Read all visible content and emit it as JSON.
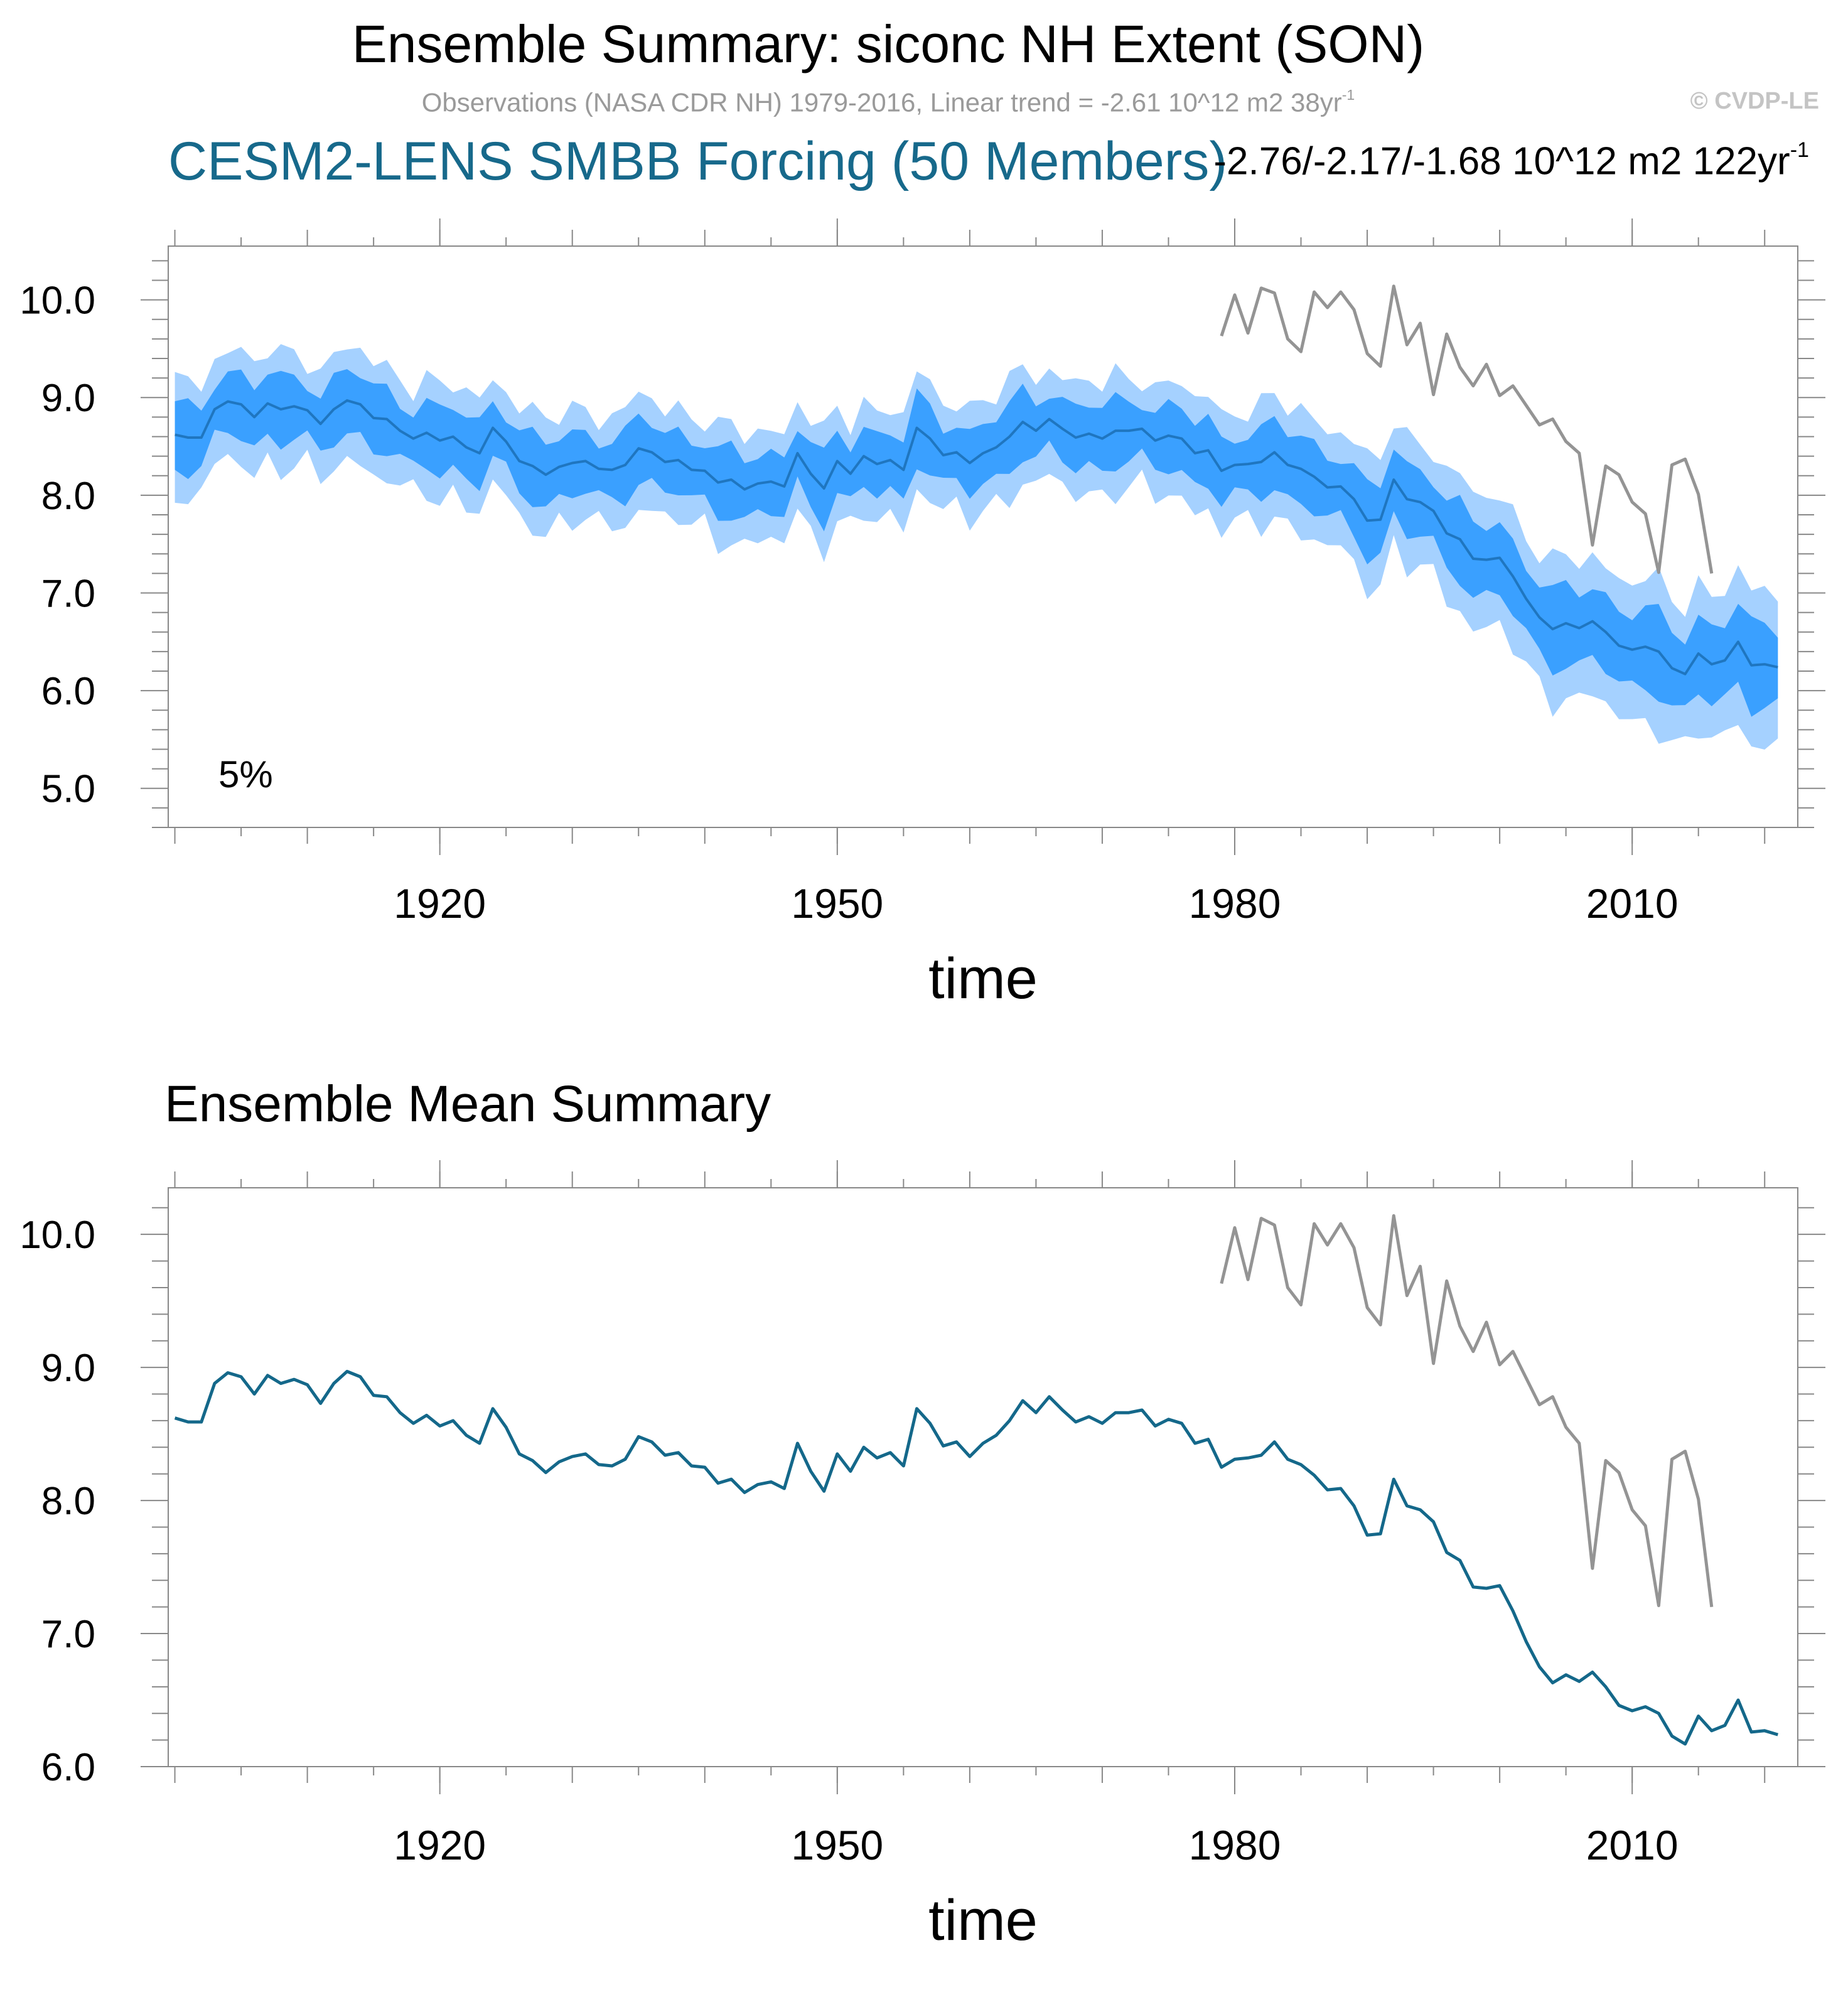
{
  "header": {
    "title": "Ensemble Summary: siconc NH Extent (SON)",
    "obs_subtitle": "Observations (NASA CDR NH) 1979-2016, Linear trend = -2.61 10^12 m2 38yr",
    "obs_subtitle_sup": "-1",
    "copyright": "© CVDP-LE",
    "model_title": "CESM2-LENS SMBB Forcing (50 Members)",
    "trend_range": "-2.76/-2.17/-1.68 10^12 m2 122yr",
    "trend_range_sup": "-1"
  },
  "colors": {
    "outer_band": "#a5d1ff",
    "inner_band": "#3aa0ff",
    "ens_mean_top": "#1f76c0",
    "ens_mean_bottom": "#14688a",
    "observations": "#949494",
    "model_title": "#17698b",
    "axis": "#888888"
  },
  "chart_data": [
    {
      "id": "ensemble_summary",
      "type": "area",
      "title": "CESM2-LENS SMBB Forcing (50 Members)",
      "annotation": "5%",
      "xlabel": "time",
      "ylabel": "",
      "xlim": [
        1899.5,
        2022.5
      ],
      "ylim": [
        4.6,
        10.55
      ],
      "x_ticks": [
        1920,
        1950,
        1980,
        2010
      ],
      "y_ticks": [
        5.0,
        6.0,
        7.0,
        8.0,
        9.0,
        10.0
      ],
      "x_start": 1900,
      "series": [
        {
          "name": "Ensemble mean",
          "role": "mean",
          "values": [
            8.62,
            8.59,
            8.59,
            8.88,
            8.96,
            8.93,
            8.8,
            8.94,
            8.88,
            8.91,
            8.87,
            8.73,
            8.88,
            8.97,
            8.93,
            8.79,
            8.78,
            8.66,
            8.58,
            8.64,
            8.56,
            8.6,
            8.49,
            8.43,
            8.69,
            8.55,
            8.35,
            8.3,
            8.21,
            8.29,
            8.33,
            8.35,
            8.27,
            8.26,
            8.31,
            8.48,
            8.44,
            8.34,
            8.36,
            8.26,
            8.25,
            8.13,
            8.16,
            8.06,
            8.12,
            8.14,
            8.09,
            8.43,
            8.22,
            8.07,
            8.35,
            8.22,
            8.4,
            8.32,
            8.36,
            8.26,
            8.69,
            8.58,
            8.41,
            8.44,
            8.33,
            8.43,
            8.49,
            8.6,
            8.75,
            8.66,
            8.78,
            8.68,
            8.59,
            8.63,
            8.58,
            8.66,
            8.66,
            8.68,
            8.56,
            8.61,
            8.58,
            8.43,
            8.46,
            8.25,
            8.31,
            8.32,
            8.34,
            8.44,
            8.31,
            8.27,
            8.19,
            8.08,
            8.09,
            7.96,
            7.74,
            7.75,
            8.16,
            7.96,
            7.93,
            7.84,
            7.61,
            7.55,
            7.35,
            7.34,
            7.36,
            7.17,
            6.94,
            6.75,
            6.63,
            6.69,
            6.64,
            6.71,
            6.6,
            6.46,
            6.42,
            6.45,
            6.4,
            6.23,
            6.17,
            6.38,
            6.27,
            6.31,
            6.5,
            6.26,
            6.27,
            6.24
          ]
        },
        {
          "name": "Observations (NASA CDR NH)",
          "role": "observations",
          "x_start": 1979,
          "values": [
            9.63,
            10.05,
            9.66,
            10.12,
            10.07,
            9.6,
            9.47,
            10.08,
            9.92,
            10.08,
            9.9,
            9.45,
            9.32,
            10.14,
            9.54,
            9.76,
            9.03,
            9.65,
            9.31,
            9.12,
            9.34,
            9.02,
            9.12,
            8.92,
            8.72,
            8.78,
            8.55,
            8.43,
            7.49,
            8.3,
            8.21,
            7.93,
            7.81,
            7.21,
            8.31,
            8.37,
            8.01,
            7.2
          ]
        }
      ]
    },
    {
      "id": "ensemble_mean_summary",
      "type": "line",
      "title": "Ensemble Mean Summary",
      "xlabel": "time",
      "ylabel": "",
      "xlim": [
        1899.5,
        2022.5
      ],
      "ylim": [
        6.0,
        10.35
      ],
      "x_ticks": [
        1920,
        1950,
        1980,
        2010
      ],
      "y_ticks": [
        6.0,
        7.0,
        8.0,
        9.0,
        10.0
      ],
      "series": [
        {
          "name": "Ensemble mean",
          "x_start": 1900,
          "values": [
            8.62,
            8.59,
            8.59,
            8.88,
            8.96,
            8.93,
            8.8,
            8.94,
            8.88,
            8.91,
            8.87,
            8.73,
            8.88,
            8.97,
            8.93,
            8.79,
            8.78,
            8.66,
            8.58,
            8.64,
            8.56,
            8.6,
            8.49,
            8.43,
            8.69,
            8.55,
            8.35,
            8.3,
            8.21,
            8.29,
            8.33,
            8.35,
            8.27,
            8.26,
            8.31,
            8.48,
            8.44,
            8.34,
            8.36,
            8.26,
            8.25,
            8.13,
            8.16,
            8.06,
            8.12,
            8.14,
            8.09,
            8.43,
            8.22,
            8.07,
            8.35,
            8.22,
            8.4,
            8.32,
            8.36,
            8.26,
            8.69,
            8.58,
            8.41,
            8.44,
            8.33,
            8.43,
            8.49,
            8.6,
            8.75,
            8.66,
            8.78,
            8.68,
            8.59,
            8.63,
            8.58,
            8.66,
            8.66,
            8.68,
            8.56,
            8.61,
            8.58,
            8.43,
            8.46,
            8.25,
            8.31,
            8.32,
            8.34,
            8.44,
            8.31,
            8.27,
            8.19,
            8.08,
            8.09,
            7.96,
            7.74,
            7.75,
            8.16,
            7.96,
            7.93,
            7.84,
            7.61,
            7.55,
            7.35,
            7.34,
            7.36,
            7.17,
            6.94,
            6.75,
            6.63,
            6.69,
            6.64,
            6.71,
            6.6,
            6.46,
            6.42,
            6.45,
            6.4,
            6.23,
            6.17,
            6.38,
            6.27,
            6.31,
            6.5,
            6.26,
            6.27,
            6.24
          ]
        },
        {
          "name": "Observations (NASA CDR NH)",
          "x_start": 1979,
          "values": [
            9.63,
            10.05,
            9.66,
            10.12,
            10.07,
            9.6,
            9.47,
            10.08,
            9.92,
            10.08,
            9.9,
            9.45,
            9.32,
            10.14,
            9.54,
            9.76,
            9.03,
            9.65,
            9.31,
            9.12,
            9.34,
            9.02,
            9.12,
            8.92,
            8.72,
            8.78,
            8.55,
            8.43,
            7.49,
            8.3,
            8.21,
            7.93,
            7.81,
            7.21,
            8.31,
            8.37,
            8.01,
            7.2
          ]
        }
      ]
    }
  ]
}
